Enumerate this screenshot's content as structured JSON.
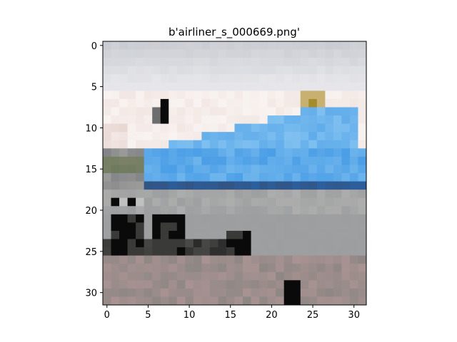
{
  "figure": {
    "title": "b'airliner_s_000669.png'"
  },
  "image": {
    "description_icon": "pixelated-photo-icon",
    "grid_width": 32,
    "grid_height": 32
  },
  "axes": {
    "x_ticks": [
      "0",
      "5",
      "10",
      "15",
      "20",
      "25",
      "30"
    ],
    "y_ticks": [
      "0",
      "5",
      "10",
      "15",
      "20",
      "25",
      "30"
    ],
    "x_tick_values": [
      0,
      5,
      10,
      15,
      20,
      25,
      30
    ],
    "y_tick_values": [
      0,
      5,
      10,
      15,
      20,
      25,
      30
    ]
  },
  "colors": {
    "sky_top": "#c9ccd2",
    "sky_mid": "#e6e6ea",
    "haze": "#f2e7e3",
    "fuselage_blue": "#4b9ee6",
    "fuselage_blue_light": "#7fc0f0",
    "fuselage_blue_dark": "#2c5f9e",
    "belly_gray": "#9c9ea0",
    "ground_dark": "#4a4a48",
    "tarmac": "#8e8784",
    "tarmac_pink": "#a89292",
    "black": "#0a0a0a",
    "window_gold": "#a48b2c",
    "grass_green": "#6f7a5c"
  }
}
